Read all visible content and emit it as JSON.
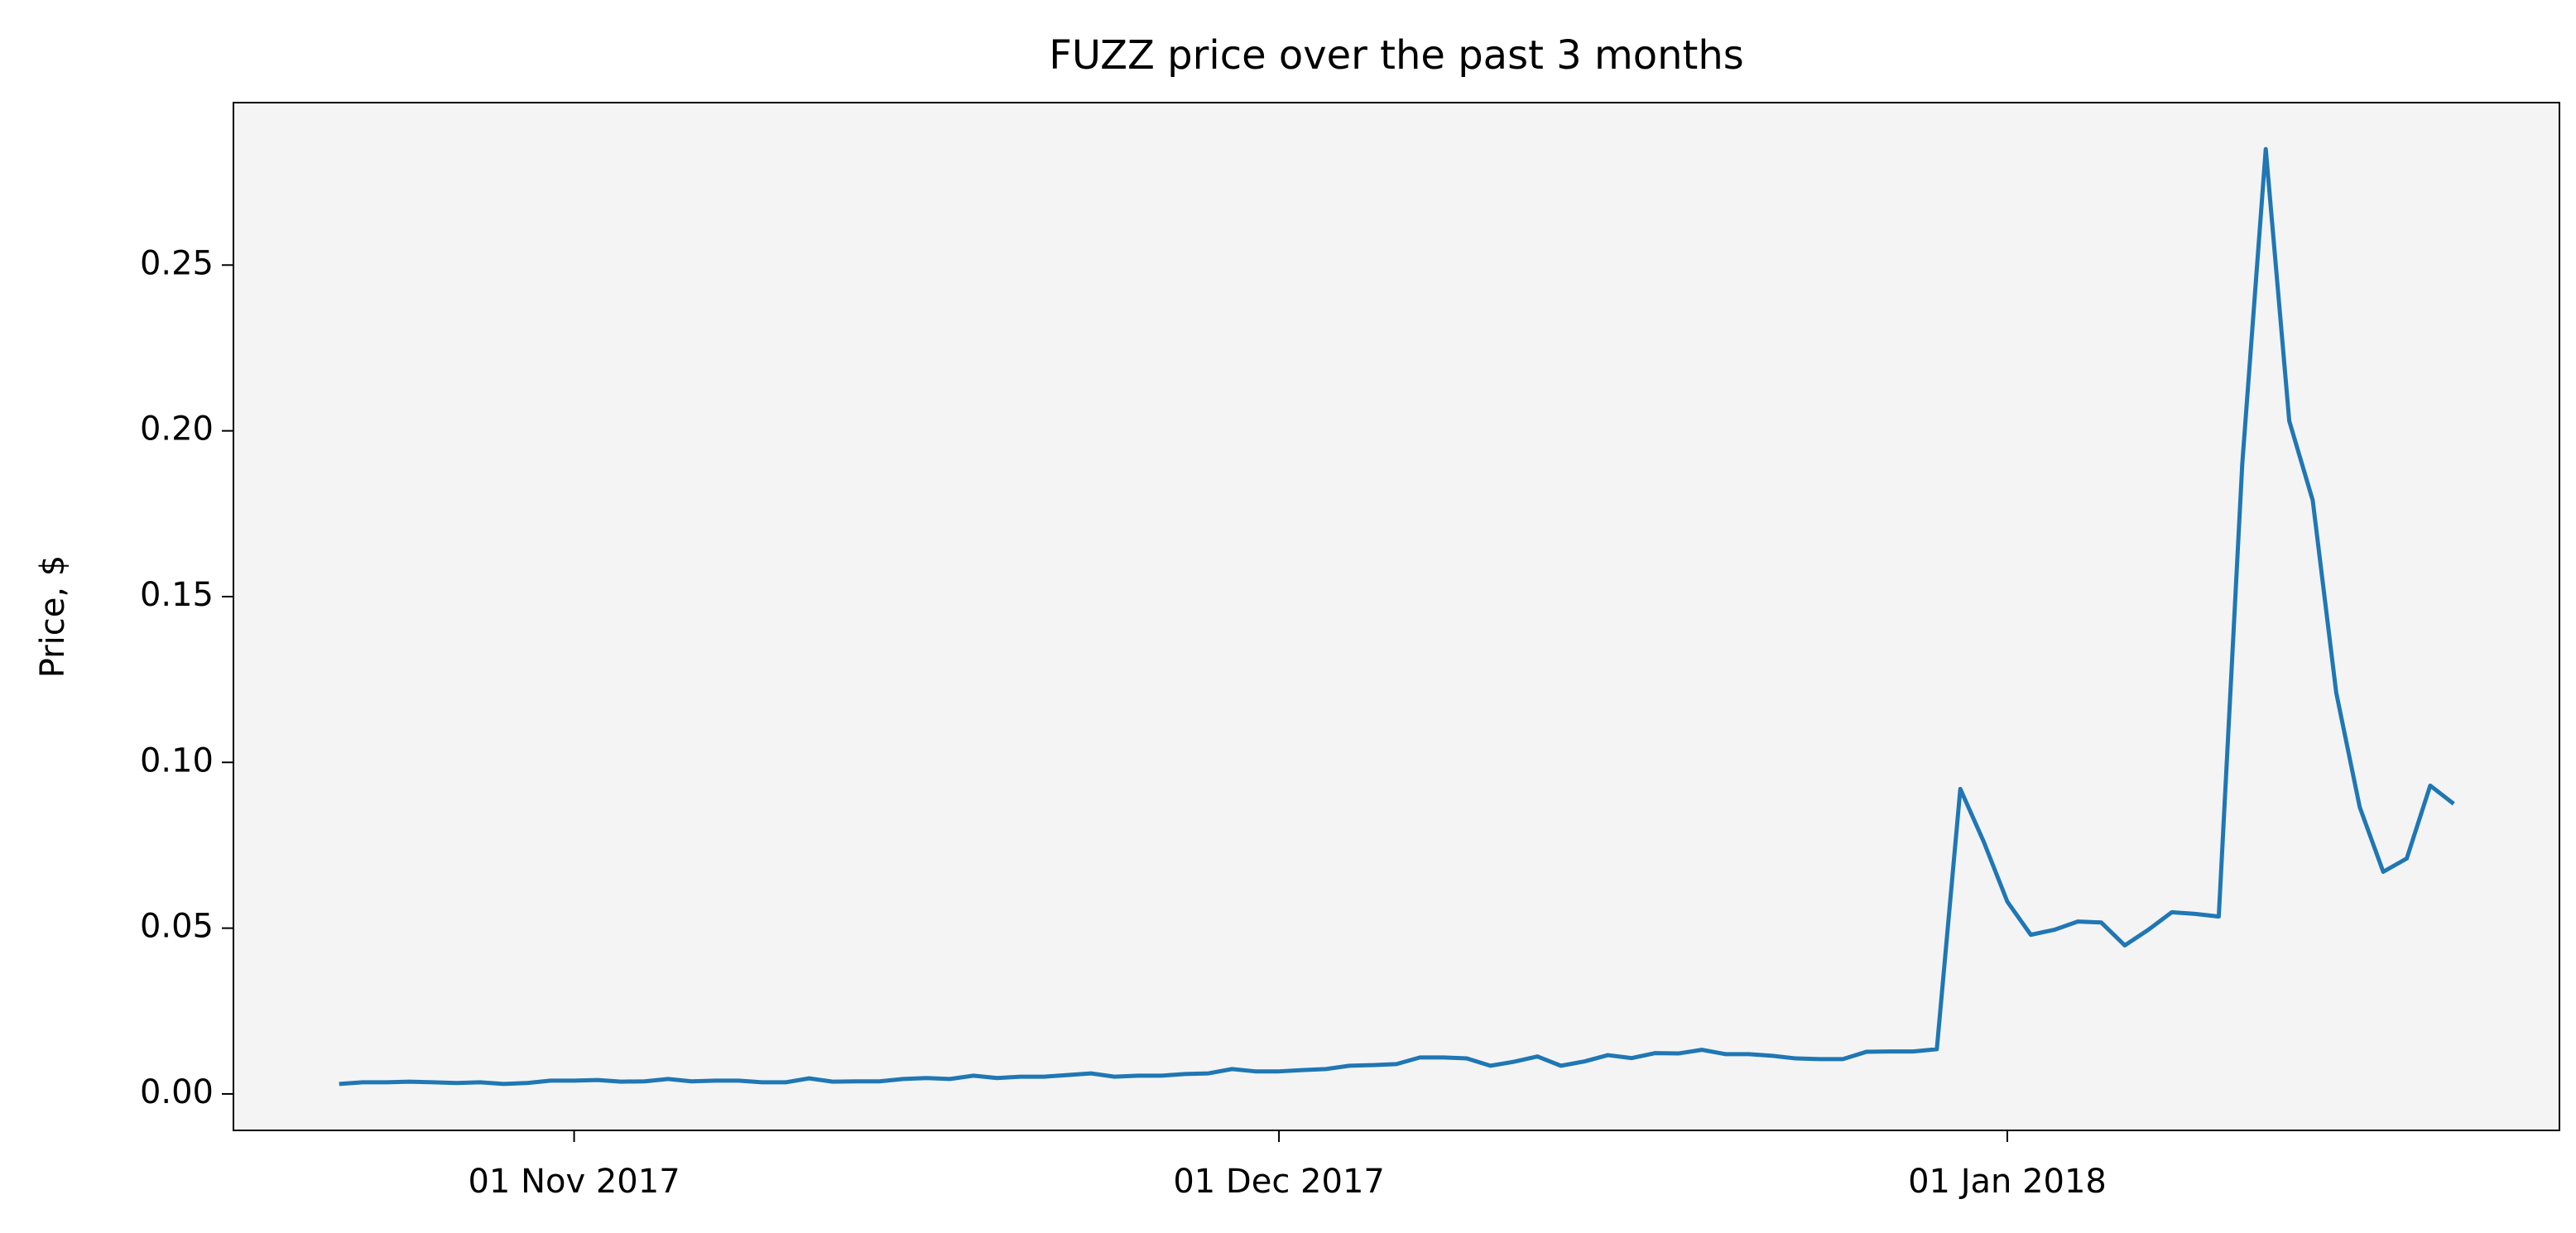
{
  "chart_data": {
    "type": "line",
    "title": "FUZZ price over the past 3 months",
    "y_label": "Price, $",
    "x": [
      "2017-10-22",
      "2017-10-23",
      "2017-10-24",
      "2017-10-25",
      "2017-10-26",
      "2017-10-27",
      "2017-10-28",
      "2017-10-29",
      "2017-10-30",
      "2017-10-31",
      "2017-11-01",
      "2017-11-02",
      "2017-11-03",
      "2017-11-04",
      "2017-11-05",
      "2017-11-06",
      "2017-11-07",
      "2017-11-08",
      "2017-11-09",
      "2017-11-10",
      "2017-11-11",
      "2017-11-12",
      "2017-11-13",
      "2017-11-14",
      "2017-11-15",
      "2017-11-16",
      "2017-11-17",
      "2017-11-18",
      "2017-11-19",
      "2017-11-20",
      "2017-11-21",
      "2017-11-22",
      "2017-11-23",
      "2017-11-24",
      "2017-11-25",
      "2017-11-26",
      "2017-11-27",
      "2017-11-28",
      "2017-11-29",
      "2017-11-30",
      "2017-12-01",
      "2017-12-02",
      "2017-12-03",
      "2017-12-04",
      "2017-12-05",
      "2017-12-06",
      "2017-12-07",
      "2017-12-08",
      "2017-12-09",
      "2017-12-10",
      "2017-12-11",
      "2017-12-12",
      "2017-12-13",
      "2017-12-14",
      "2017-12-15",
      "2017-12-16",
      "2017-12-17",
      "2017-12-18",
      "2017-12-19",
      "2017-12-20",
      "2017-12-21",
      "2017-12-22",
      "2017-12-23",
      "2017-12-24",
      "2017-12-25",
      "2017-12-26",
      "2017-12-27",
      "2017-12-28",
      "2017-12-29",
      "2017-12-30",
      "2017-12-31",
      "2018-01-01",
      "2018-01-02",
      "2018-01-03",
      "2018-01-04",
      "2018-01-05",
      "2018-01-06",
      "2018-01-07",
      "2018-01-08",
      "2018-01-09",
      "2018-01-10",
      "2018-01-11",
      "2018-01-12",
      "2018-01-13",
      "2018-01-14",
      "2018-01-15",
      "2018-01-16",
      "2018-01-17",
      "2018-01-18",
      "2018-01-19",
      "2018-01-20"
    ],
    "values": [
      0.003,
      0.0035,
      0.0035,
      0.0037,
      0.0035,
      0.0033,
      0.0035,
      0.003,
      0.0033,
      0.004,
      0.004,
      0.0042,
      0.0037,
      0.0038,
      0.0045,
      0.0038,
      0.004,
      0.004,
      0.0035,
      0.0035,
      0.0047,
      0.0037,
      0.0038,
      0.0038,
      0.0045,
      0.0048,
      0.0045,
      0.0055,
      0.0048,
      0.0052,
      0.0052,
      0.0057,
      0.0062,
      0.0052,
      0.0055,
      0.0055,
      0.006,
      0.0062,
      0.0075,
      0.0068,
      0.0068,
      0.0072,
      0.0075,
      0.0085,
      0.0087,
      0.009,
      0.011,
      0.011,
      0.0107,
      0.0085,
      0.0097,
      0.0113,
      0.0085,
      0.0098,
      0.0117,
      0.0108,
      0.0123,
      0.0122,
      0.0133,
      0.012,
      0.012,
      0.0115,
      0.0107,
      0.0105,
      0.0105,
      0.0127,
      0.0128,
      0.0128,
      0.0135,
      0.092,
      0.076,
      0.058,
      0.048,
      0.0495,
      0.052,
      0.0517,
      0.0448,
      0.0495,
      0.0548,
      0.0543,
      0.0535,
      0.19,
      0.285,
      0.203,
      0.179,
      0.121,
      0.0865,
      0.067,
      0.071,
      0.093,
      0.0875
    ],
    "color": "#1f77b4",
    "background": "#f4f4f4",
    "xlim": [
      "2017-10-17T12:00Z",
      "2018-01-24T12:00Z"
    ],
    "xticks": [
      {
        "value": "2017-11-01",
        "label": "01 Nov 2017"
      },
      {
        "value": "2017-12-01",
        "label": "01 Dec 2017"
      },
      {
        "value": "2018-01-01",
        "label": "01 Jan 2018"
      }
    ],
    "ylim": [
      -0.011,
      0.299
    ],
    "yticks": [
      {
        "value": 0,
        "label": "0.00"
      },
      {
        "value": 0.05,
        "label": "0.05"
      },
      {
        "value": 0.1,
        "label": "0.10"
      },
      {
        "value": 0.15,
        "label": "0.15"
      },
      {
        "value": 0.2,
        "label": "0.20"
      },
      {
        "value": 0.25,
        "label": "0.25"
      }
    ],
    "grid": false
  }
}
